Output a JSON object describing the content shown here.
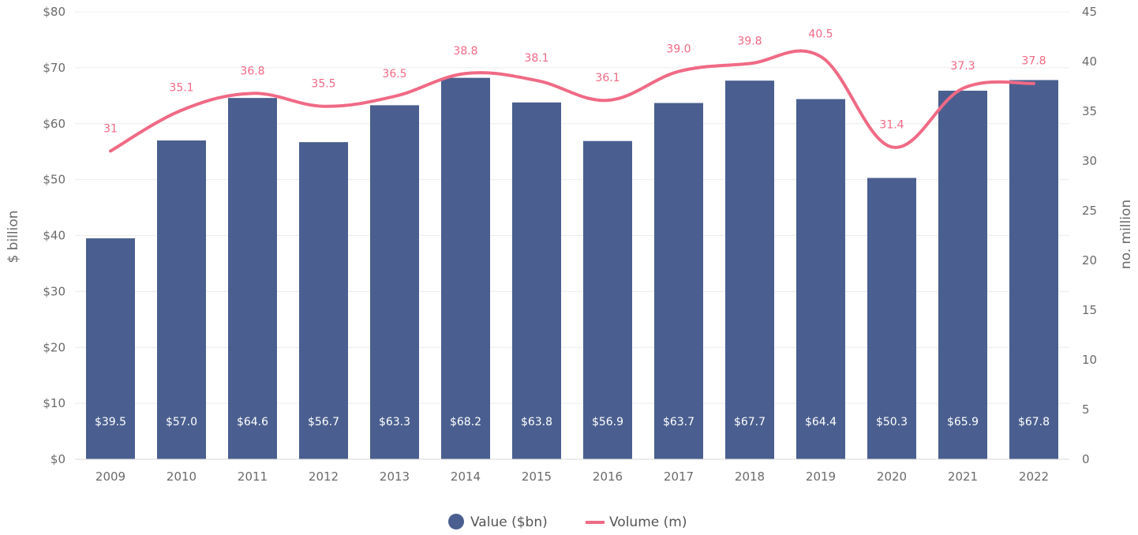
{
  "chart_data": {
    "type": "bar",
    "categories": [
      "2009",
      "2010",
      "2011",
      "2012",
      "2013",
      "2014",
      "2015",
      "2016",
      "2017",
      "2018",
      "2019",
      "2020",
      "2021",
      "2022"
    ],
    "series": [
      {
        "name": "Value ($bn)",
        "kind": "bar",
        "axis": "left",
        "values": [
          39.5,
          57.0,
          64.6,
          56.7,
          63.3,
          68.2,
          63.8,
          56.9,
          63.7,
          67.7,
          64.4,
          50.3,
          65.9,
          67.8
        ],
        "labels": [
          "$39.5",
          "$57.0",
          "$64.6",
          "$56.7",
          "$63.3",
          "$68.2",
          "$63.8",
          "$56.9",
          "$63.7",
          "$67.7",
          "$64.4",
          "$50.3",
          "$65.9",
          "$67.8"
        ]
      },
      {
        "name": "Volume (m)",
        "kind": "line",
        "axis": "right",
        "values": [
          31,
          35.1,
          36.8,
          35.5,
          36.5,
          38.8,
          38.1,
          36.1,
          39.0,
          39.8,
          40.5,
          31.4,
          37.3,
          37.8
        ],
        "labels": [
          "31",
          "35.1",
          "36.8",
          "35.5",
          "36.5",
          "38.8",
          "38.1",
          "36.1",
          "39.0",
          "39.8",
          "40.5",
          "31.4",
          "37.3",
          "37.8"
        ]
      }
    ],
    "ylabel_left": "$ billion",
    "ylabel_right": "no. million",
    "ylim_left": [
      0,
      80
    ],
    "ylim_right": [
      0,
      45
    ],
    "yticks_left": [
      "$0",
      "$10",
      "$20",
      "$30",
      "$40",
      "$50",
      "$60",
      "$70",
      "$80"
    ],
    "yticks_right": [
      "0",
      "5",
      "10",
      "15",
      "20",
      "25",
      "30",
      "35",
      "40",
      "45"
    ],
    "grid": true,
    "legend_position": "bottom-center",
    "colors": {
      "bar": "#4a5f8f",
      "line": "#f06a85"
    }
  }
}
